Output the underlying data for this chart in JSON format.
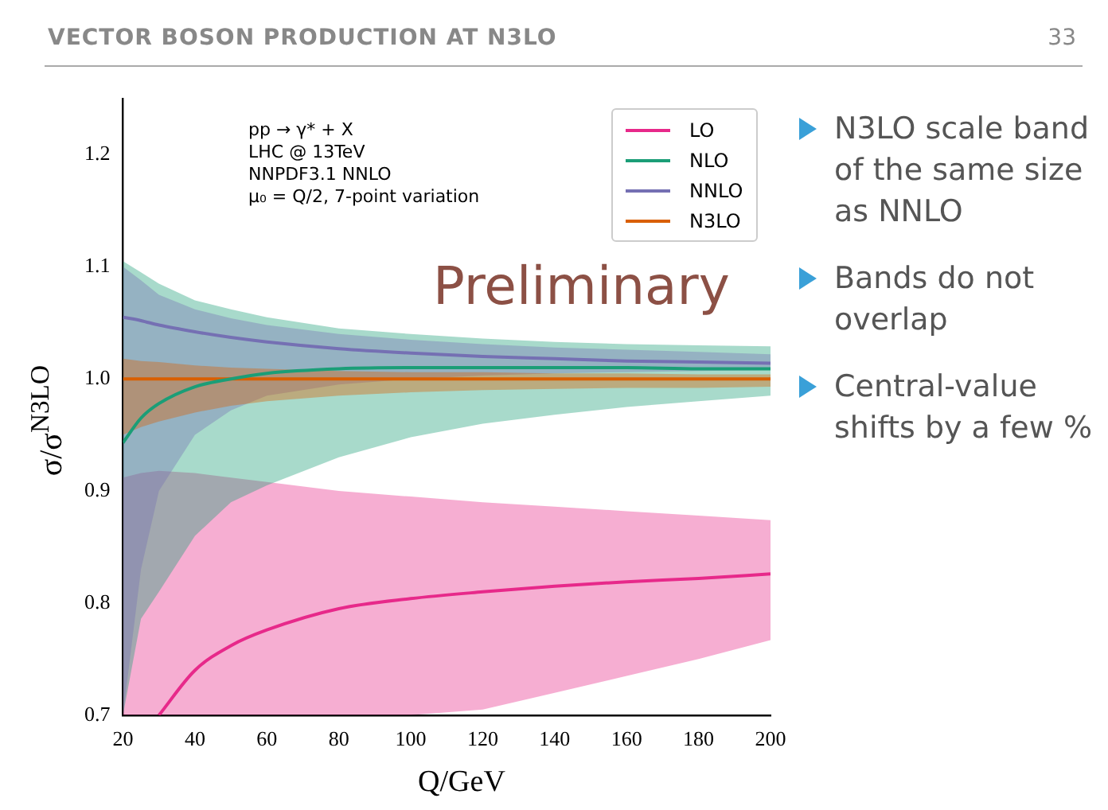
{
  "chart_data": {
    "type": "line",
    "title": "VECTOR BOSON PRODUCTION AT N3LO",
    "xlabel": "Q/GeV",
    "ylabel": "σ/σ$^{N3LO}$",
    "xlim": [
      20,
      200
    ],
    "ylim": [
      0.7,
      1.25
    ],
    "xticks": [
      20,
      40,
      60,
      80,
      100,
      120,
      140,
      160,
      180,
      200
    ],
    "yticks": [
      {
        "value": 0.7,
        "label": "0.7"
      },
      {
        "value": 0.8,
        "label": "0.8"
      },
      {
        "value": 0.9,
        "label": "0.9"
      },
      {
        "value": 1.0,
        "label": "1.0"
      },
      {
        "value": 1.1,
        "label": "1.1"
      },
      {
        "value": 1.2,
        "label": "1.2"
      }
    ],
    "legend": "top right",
    "grid": false,
    "x": [
      20,
      25,
      30,
      40,
      50,
      60,
      80,
      100,
      120,
      140,
      160,
      180,
      200
    ],
    "series": [
      {
        "name": "LO",
        "color": "#e7298a",
        "values": [
          null,
          null,
          0.7,
          0.74,
          0.762,
          0.776,
          0.795,
          0.804,
          0.81,
          0.815,
          0.819,
          0.822,
          0.826
        ],
        "upper": [
          0.912,
          0.916,
          0.918,
          0.916,
          0.912,
          0.908,
          0.9,
          0.895,
          0.89,
          0.886,
          0.882,
          0.878,
          0.874
        ],
        "lower": [
          0.7,
          0.7,
          0.7,
          0.7,
          0.7,
          0.7,
          0.7,
          0.7,
          0.705,
          0.72,
          0.735,
          0.75,
          0.767
        ]
      },
      {
        "name": "NLO",
        "color": "#1b9e77",
        "values": [
          0.943,
          0.965,
          0.978,
          0.993,
          1.0,
          1.005,
          1.009,
          1.01,
          1.01,
          1.01,
          1.01,
          1.009,
          1.009
        ],
        "upper": [
          1.105,
          1.095,
          1.085,
          1.07,
          1.062,
          1.055,
          1.045,
          1.04,
          1.036,
          1.033,
          1.031,
          1.03,
          1.029
        ],
        "lower": [
          0.7,
          0.786,
          0.81,
          0.86,
          0.89,
          0.905,
          0.93,
          0.948,
          0.96,
          0.968,
          0.975,
          0.98,
          0.985
        ]
      },
      {
        "name": "NNLO",
        "color": "#7570b3",
        "values": [
          1.055,
          1.052,
          1.048,
          1.042,
          1.037,
          1.033,
          1.027,
          1.023,
          1.02,
          1.018,
          1.016,
          1.015,
          1.014
        ],
        "upper": [
          1.1,
          1.088,
          1.075,
          1.062,
          1.054,
          1.048,
          1.04,
          1.035,
          1.031,
          1.028,
          1.026,
          1.024,
          1.022
        ],
        "lower": [
          0.7,
          0.83,
          0.9,
          0.95,
          0.972,
          0.985,
          0.995,
          1.0,
          1.003,
          1.005,
          1.006,
          1.007,
          1.008
        ]
      },
      {
        "name": "N3LO",
        "color": "#d95f02",
        "values": [
          1.0,
          1.0,
          1.0,
          1.0,
          1.0,
          1.0,
          1.0,
          1.0,
          1.0,
          1.0,
          1.0,
          1.0,
          1.0
        ],
        "upper": [
          1.018,
          1.016,
          1.015,
          1.012,
          1.01,
          1.009,
          1.007,
          1.006,
          1.006,
          1.005,
          1.005,
          1.004,
          1.004
        ],
        "lower": [
          0.95,
          0.957,
          0.962,
          0.97,
          0.976,
          0.98,
          0.985,
          0.988,
          0.99,
          0.991,
          0.992,
          0.992,
          0.993
        ]
      }
    ],
    "annotations": [
      "pp → γ* + X",
      "LHC @ 13TeV",
      "NNPDF3.1 NNLO",
      "μ₀ = Q/2,  7-point variation",
      "Preliminary",
      "N3LO scale band of the same size as NNLO",
      "Bands do not overlap",
      "Central-value shifts by a few %",
      "33"
    ]
  }
}
